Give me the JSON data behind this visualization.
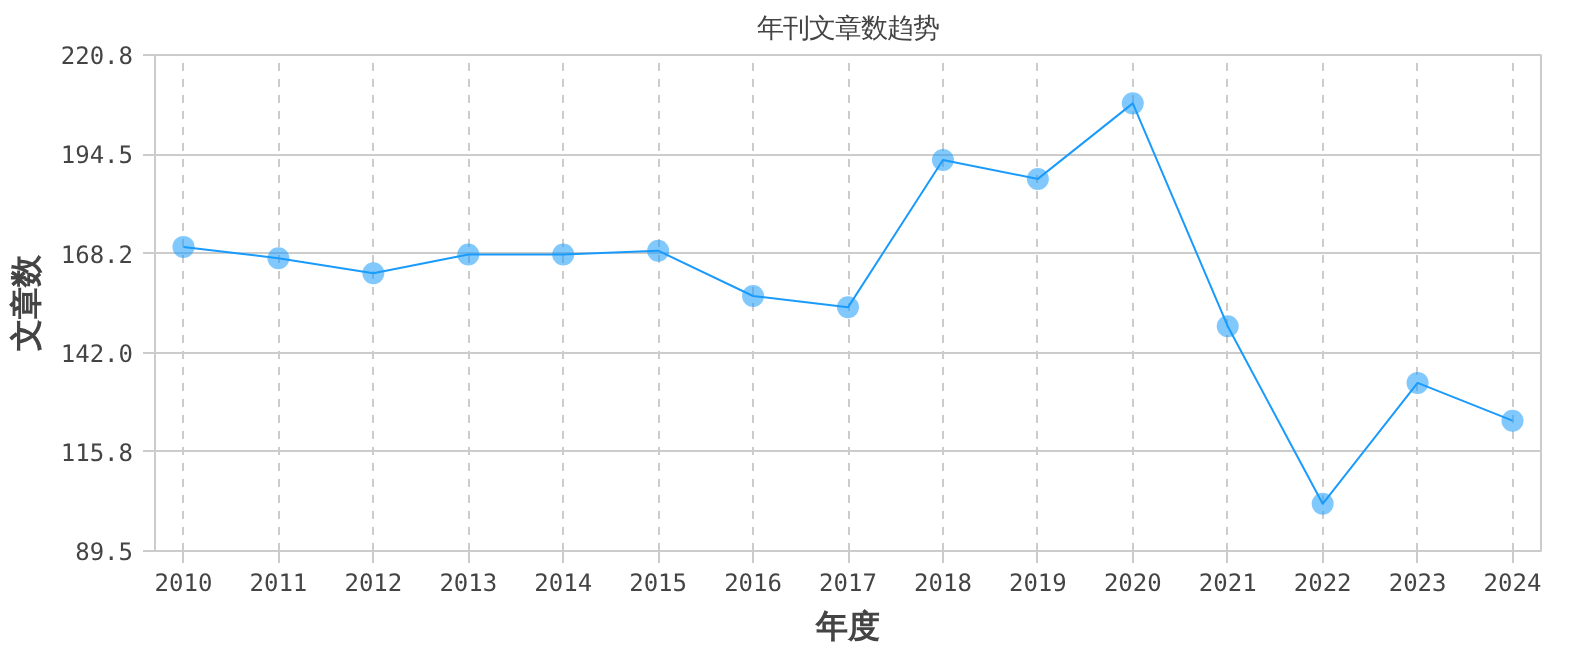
{
  "chart_data": {
    "type": "line",
    "title": "年刊文章数趋势",
    "xlabel": "年度",
    "ylabel": "文章数",
    "categories": [
      "2010",
      "2011",
      "2012",
      "2013",
      "2014",
      "2015",
      "2016",
      "2017",
      "2018",
      "2019",
      "2020",
      "2021",
      "2022",
      "2023",
      "2024"
    ],
    "series": [
      {
        "color": "#1a9bfc",
        "values": [
          170,
          167,
          163,
          168,
          168,
          169,
          157,
          154,
          193,
          188,
          208,
          149,
          102,
          134,
          124
        ]
      }
    ],
    "ylim": [
      89.5,
      220.8
    ],
    "yticks": [
      {
        "value": 89.5,
        "label": "89.5"
      },
      {
        "value": 115.8,
        "label": "115.8"
      },
      {
        "value": 142.0,
        "label": "142.0"
      },
      {
        "value": 168.2,
        "label": "168.2"
      },
      {
        "value": 194.5,
        "label": "194.5"
      },
      {
        "value": 220.8,
        "label": "220.8"
      }
    ],
    "grid": true,
    "marker": "circle",
    "line_style": "solid"
  }
}
